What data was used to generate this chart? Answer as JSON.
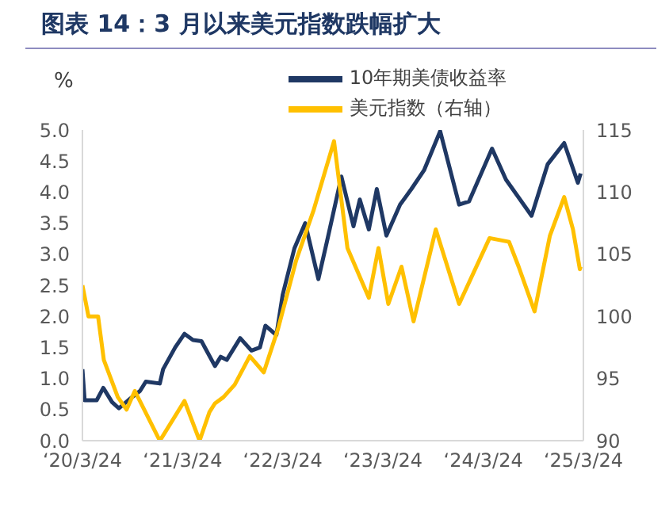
{
  "chart_data": {
    "type": "line",
    "title": "图表 14：3 月以来美元指数跌幅扩大",
    "ylabel": "%",
    "xlim": [
      "2020-03-24",
      "2025-03-24"
    ],
    "xticks": [
      {
        "value": "2020-03-24",
        "label": "‘20/3/24"
      },
      {
        "value": "2021-03-24",
        "label": "‘21/3/24"
      },
      {
        "value": "2022-03-24",
        "label": "‘22/3/24"
      },
      {
        "value": "2023-03-24",
        "label": "‘23/3/24"
      },
      {
        "value": "2024-03-24",
        "label": "‘24/3/24"
      },
      {
        "value": "2025-03-24",
        "label": "‘25/3/24"
      }
    ],
    "ylim": [
      0,
      5
    ],
    "yticks": [
      {
        "value": 0,
        "label": "0.0"
      },
      {
        "value": 0.5,
        "label": "0.5"
      },
      {
        "value": 1,
        "label": "1.0"
      },
      {
        "value": 1.5,
        "label": "1.5"
      },
      {
        "value": 2,
        "label": "2.0"
      },
      {
        "value": 2.5,
        "label": "2.5"
      },
      {
        "value": 3,
        "label": "3.0"
      },
      {
        "value": 3.5,
        "label": "3.5"
      },
      {
        "value": 4,
        "label": "4.0"
      },
      {
        "value": 4.5,
        "label": "4.5"
      },
      {
        "value": 5,
        "label": "5.0"
      }
    ],
    "y2lim": [
      90,
      115
    ],
    "y2ticks": [
      90,
      95,
      100,
      105,
      110,
      115
    ],
    "legend": "top",
    "marker": "none",
    "line_style": "solid",
    "series": [
      {
        "name": "10年期美债收益率",
        "color": "#1f3864",
        "x": [
          "2020-03-24",
          "2020-04-01",
          "2020-05-15",
          "2020-06-08",
          "2020-07-10",
          "2020-08-04",
          "2020-09-15",
          "2020-10-20",
          "2020-11-10",
          "2020-12-31",
          "2021-01-12",
          "2021-02-25",
          "2021-03-31",
          "2021-05-01",
          "2021-06-01",
          "2021-07-20",
          "2021-08-10",
          "2021-09-01",
          "2021-10-20",
          "2021-11-30",
          "2021-12-31",
          "2022-01-20",
          "2022-03-01",
          "2022-03-24",
          "2022-05-06",
          "2022-06-14",
          "2022-08-01",
          "2022-09-01",
          "2022-10-24",
          "2022-12-07",
          "2022-12-30",
          "2023-02-01",
          "2023-03-02",
          "2023-04-06",
          "2023-05-26",
          "2023-07-06",
          "2023-08-21",
          "2023-10-19",
          "2023-12-27",
          "2024-02-01",
          "2024-04-25",
          "2024-06-15",
          "2024-09-16",
          "2024-11-14",
          "2025-01-13",
          "2025-03-04",
          "2025-03-14"
        ],
        "values": [
          1.15,
          0.65,
          0.65,
          0.85,
          0.62,
          0.52,
          0.68,
          0.8,
          0.95,
          0.92,
          1.15,
          1.5,
          1.72,
          1.62,
          1.6,
          1.2,
          1.35,
          1.3,
          1.65,
          1.45,
          1.5,
          1.85,
          1.7,
          2.35,
          3.1,
          3.5,
          2.6,
          3.2,
          4.25,
          3.45,
          3.88,
          3.4,
          4.05,
          3.3,
          3.8,
          4.05,
          4.35,
          4.98,
          3.8,
          3.85,
          4.7,
          4.2,
          3.62,
          4.45,
          4.79,
          4.15,
          4.3
        ]
      },
      {
        "name": "美元指数（右轴）",
        "color": "#ffc000",
        "axis": "y2",
        "x": [
          "2020-03-24",
          "2020-04-15",
          "2020-05-20",
          "2020-06-10",
          "2020-07-31",
          "2020-09-01",
          "2020-10-01",
          "2020-12-31",
          "2021-01-06",
          "2021-03-31",
          "2021-05-25",
          "2021-06-30",
          "2021-07-20",
          "2021-08-20",
          "2021-09-30",
          "2021-11-24",
          "2022-01-14",
          "2022-03-07",
          "2022-05-12",
          "2022-07-14",
          "2022-09-27",
          "2022-11-15",
          "2023-02-01",
          "2023-03-08",
          "2023-04-13",
          "2023-05-31",
          "2023-07-14",
          "2023-10-03",
          "2023-12-27",
          "2024-04-16",
          "2024-06-26",
          "2024-07-31",
          "2024-09-27",
          "2024-11-22",
          "2025-01-13",
          "2025-02-14",
          "2025-03-11",
          "2025-03-14"
        ],
        "values": [
          102.5,
          100,
          100,
          96.5,
          93.5,
          92.5,
          94,
          90,
          90.2,
          93.2,
          90,
          92.3,
          93,
          93.5,
          94.5,
          96.8,
          95.5,
          99,
          104.5,
          108.5,
          114.1,
          105.5,
          101.5,
          105.5,
          101,
          104,
          99.6,
          107,
          101,
          106.3,
          106,
          104,
          100.4,
          106.5,
          109.6,
          107,
          103.8,
          104
        ]
      }
    ]
  }
}
